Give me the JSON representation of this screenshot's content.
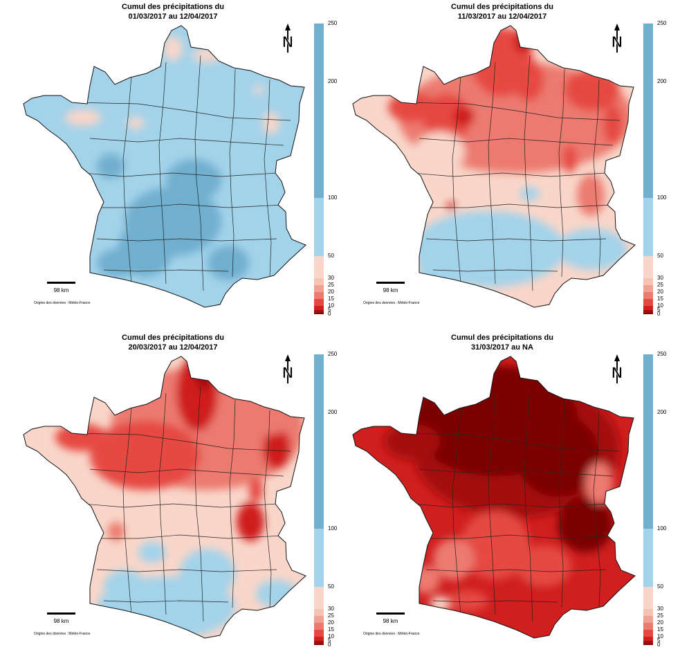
{
  "colors": {
    "c250": "#71afcf",
    "c200": "#71afcf",
    "c100": "#a3d3ea",
    "c50": "#f9d6c9",
    "c30": "#f6c2b1",
    "c25": "#f1a094",
    "c20": "#ec7a6f",
    "c15": "#e54942",
    "c10": "#cf1f1f",
    "c5": "#a50d0d",
    "c0": "#7c0505"
  },
  "legend_ticks": [
    "250",
    "200",
    "100",
    "50",
    "30",
    "25",
    "20",
    "15",
    "10",
    "5",
    "0"
  ],
  "scale_label": "98 km",
  "source": "Origine des données : Météo-France",
  "north_letter": "N",
  "panels": [
    {
      "title_line1": "Cumul des précipitations du",
      "title_line2": "01/03/2017 au 12/04/2017",
      "palette": "blue"
    },
    {
      "title_line1": "Cumul des précipitations du",
      "title_line2": "11/03/2017 au 12/04/2017",
      "palette": "mixed"
    },
    {
      "title_line1": "Cumul des précipitations du",
      "title_line2": "20/03/2017 au 12/04/2017",
      "palette": "red"
    },
    {
      "title_line1": "Cumul des précipitations du",
      "title_line2": "31/03/2017 au NA",
      "palette": "darkred"
    }
  ]
}
